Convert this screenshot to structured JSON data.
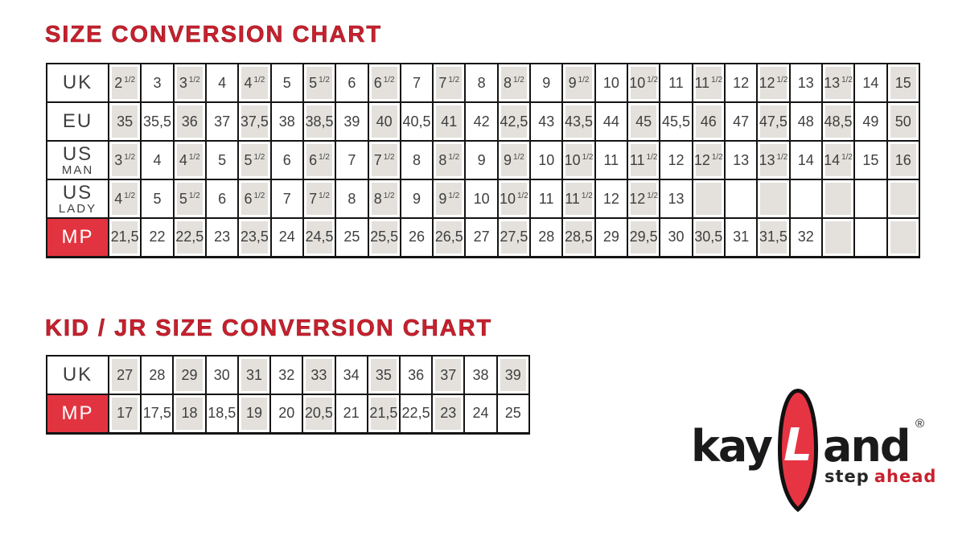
{
  "titles": {
    "main": "SIZE CONVERSION CHART",
    "kid": "KID / JR SIZE CONVERSION CHART"
  },
  "colors": {
    "title_red": "#c9202e",
    "mp_red": "#e23440",
    "cell_gray": "#e4e1dc",
    "border_black": "#141414",
    "logo_red": "#e73443"
  },
  "tables": {
    "adult": {
      "rows": [
        {
          "id": "uk",
          "label": "UK",
          "label2": "",
          "red": false,
          "cells": [
            "2 1/2",
            "3",
            "3 1/2",
            "4",
            "4 1/2",
            "5",
            "5 1/2",
            "6",
            "6 1/2",
            "7",
            "7 1/2",
            "8",
            "8 1/2",
            "9",
            "9 1/2",
            "10",
            "10 1/2",
            "11",
            "11 1/2",
            "12",
            "12 1/2",
            "13",
            "13 1/2",
            "14",
            "15"
          ],
          "gray": [
            1,
            0,
            1,
            0,
            1,
            0,
            1,
            0,
            1,
            0,
            1,
            0,
            1,
            0,
            1,
            0,
            1,
            0,
            1,
            0,
            1,
            0,
            1,
            0,
            1
          ]
        },
        {
          "id": "eu",
          "label": "EU",
          "label2": "",
          "red": false,
          "cells": [
            "35",
            "35,5",
            "36",
            "37",
            "37,5",
            "38",
            "38,5",
            "39",
            "40",
            "40,5",
            "41",
            "42",
            "42,5",
            "43",
            "43,5",
            "44",
            "45",
            "45,5",
            "46",
            "47",
            "47,5",
            "48",
            "48,5",
            "49",
            "50"
          ],
          "gray": [
            1,
            0,
            1,
            0,
            1,
            0,
            1,
            0,
            1,
            0,
            1,
            0,
            1,
            0,
            1,
            0,
            1,
            0,
            1,
            0,
            1,
            0,
            1,
            0,
            1
          ]
        },
        {
          "id": "us-man",
          "label": "US",
          "label2": "MAN",
          "red": false,
          "cells": [
            "3 1/2",
            "4",
            "4 1/2",
            "5",
            "5 1/2",
            "6",
            "6 1/2",
            "7",
            "7 1/2",
            "8",
            "8 1/2",
            "9",
            "9 1/2",
            "10",
            "10 1/2",
            "11",
            "11 1/2",
            "12",
            "12 1/2",
            "13",
            "13 1/2",
            "14",
            "14 1/2",
            "15",
            "16"
          ],
          "gray": [
            1,
            0,
            1,
            0,
            1,
            0,
            1,
            0,
            1,
            0,
            1,
            0,
            1,
            0,
            1,
            0,
            1,
            0,
            1,
            0,
            1,
            0,
            1,
            0,
            1
          ]
        },
        {
          "id": "us-lady",
          "label": "US",
          "label2": "LADY",
          "red": false,
          "cells": [
            "4 1/2",
            "5",
            "5 1/2",
            "6",
            "6 1/2",
            "7",
            "7 1/2",
            "8",
            "8 1/2",
            "9",
            "9 1/2",
            "10",
            "10 1/2",
            "11",
            "11 1/2",
            "12",
            "12 1/2",
            "13",
            "",
            "",
            "",
            "",
            "",
            "",
            ""
          ],
          "gray": [
            1,
            0,
            1,
            0,
            1,
            0,
            1,
            0,
            1,
            0,
            1,
            0,
            1,
            0,
            1,
            0,
            1,
            0,
            1,
            0,
            1,
            0,
            1,
            0,
            1
          ]
        },
        {
          "id": "mp",
          "label": "MP",
          "label2": "",
          "red": true,
          "cells": [
            "21,5",
            "22",
            "22,5",
            "23",
            "23,5",
            "24",
            "24,5",
            "25",
            "25,5",
            "26",
            "26,5",
            "27",
            "27,5",
            "28",
            "28,5",
            "29",
            "29,5",
            "30",
            "30,5",
            "31",
            "31,5",
            "32",
            "",
            "",
            ""
          ],
          "gray": [
            1,
            0,
            1,
            0,
            1,
            0,
            1,
            0,
            1,
            0,
            1,
            0,
            1,
            0,
            1,
            0,
            1,
            0,
            1,
            0,
            1,
            0,
            1,
            0,
            1
          ]
        }
      ]
    },
    "kid": {
      "rows": [
        {
          "id": "uk",
          "label": "UK",
          "label2": "",
          "red": false,
          "cells": [
            "27",
            "28",
            "29",
            "30",
            "31",
            "32",
            "33",
            "34",
            "35",
            "36",
            "37",
            "38",
            "39"
          ],
          "gray": [
            1,
            0,
            1,
            0,
            1,
            0,
            1,
            0,
            1,
            0,
            1,
            0,
            1
          ]
        },
        {
          "id": "mp",
          "label": "MP",
          "label2": "",
          "red": true,
          "cells": [
            "17",
            "17,5",
            "18",
            "18,5",
            "19",
            "20",
            "20,5",
            "21",
            "21,5",
            "22,5",
            "23",
            "24",
            "25"
          ],
          "gray": [
            1,
            0,
            1,
            0,
            1,
            0,
            1,
            0,
            1,
            0,
            1,
            0,
            0
          ]
        }
      ]
    }
  },
  "logo": {
    "word_left": "kay",
    "letter": "L",
    "word_right": "and",
    "reg": "®",
    "tagline_left": "step",
    "tagline_right": "ahead"
  }
}
